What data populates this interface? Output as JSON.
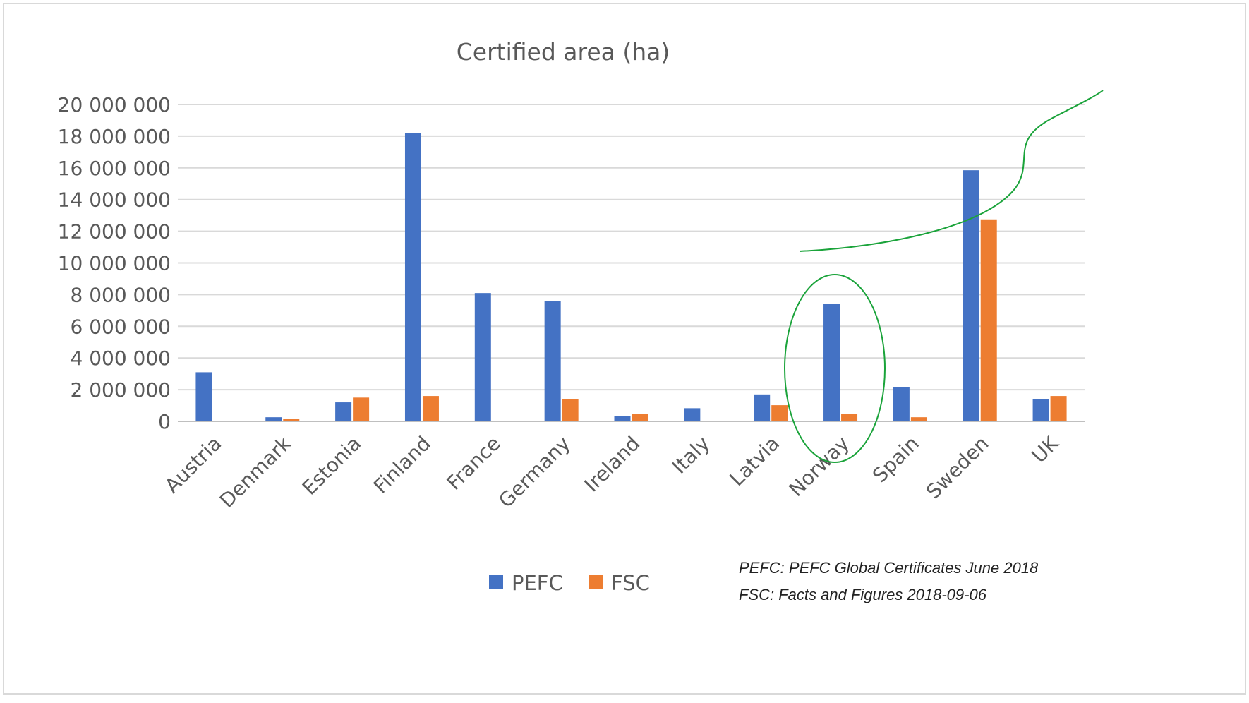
{
  "chart_data": {
    "type": "bar",
    "title": "Certified area (ha)",
    "xlabel": "",
    "ylabel": "",
    "categories": [
      "Austria",
      "Denmark",
      "Estonia",
      "Finland",
      "France",
      "Germany",
      "Ireland",
      "Italy",
      "Latvia",
      "Norway",
      "Spain",
      "Sweden",
      "UK"
    ],
    "series": [
      {
        "name": "PEFC",
        "color": "#4472c4",
        "values": [
          3100000,
          260000,
          1200000,
          18200000,
          8100000,
          7600000,
          330000,
          830000,
          1700000,
          7400000,
          2150000,
          15850000,
          1400000
        ]
      },
      {
        "name": "FSC",
        "color": "#ed7d31",
        "values": [
          0,
          160000,
          1500000,
          1600000,
          0,
          1400000,
          450000,
          0,
          1020000,
          450000,
          260000,
          12750000,
          1600000
        ]
      }
    ],
    "ylim": [
      0,
      20000000
    ],
    "yticks": [
      0,
      2000000,
      4000000,
      6000000,
      8000000,
      10000000,
      12000000,
      14000000,
      16000000,
      18000000,
      20000000
    ],
    "ytick_labels": [
      "0",
      "2 000 000",
      "4 000 000",
      "6 000 000",
      "8 000 000",
      "10 000 000",
      "12 000 000",
      "14 000 000",
      "16 000 000",
      "18 000 000",
      "20 000 000"
    ],
    "grid": true,
    "legend_position": "bottom"
  },
  "source_notes": [
    "PEFC: PEFC Global Certificates June 2018",
    "FSC: Facts and Figures 2018-09-06"
  ],
  "annotation_color": "#1aa33a"
}
